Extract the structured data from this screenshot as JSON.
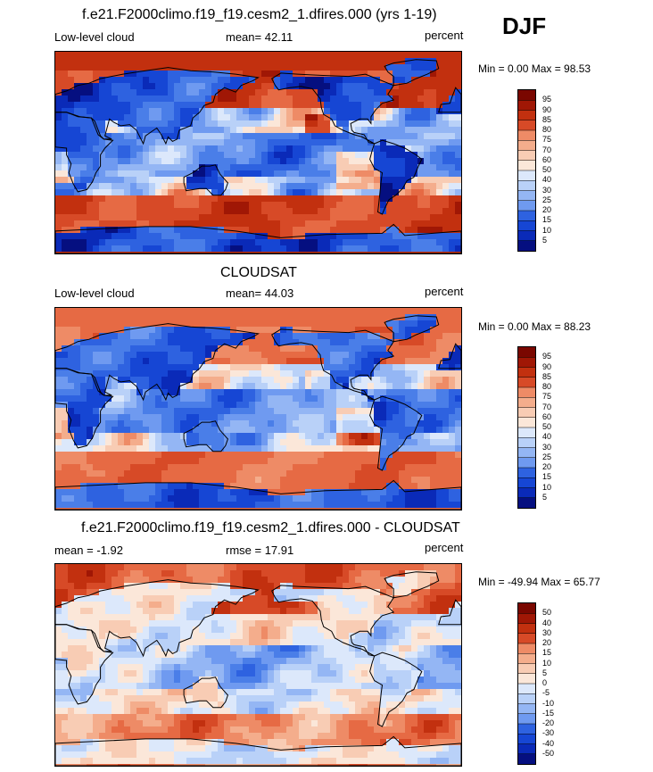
{
  "season": "DJF",
  "colors": {
    "levels11": [
      "#050f80",
      "#0a2ab8",
      "#1646d4",
      "#2e62e0",
      "#4a7ee8",
      "#6f9af0",
      "#94b6f4",
      "#b9d1f8",
      "#dce8fb",
      "#fbe7d9",
      "#f8ccb4",
      "#f4ad8c",
      "#ee8b66",
      "#e66a44",
      "#d74a27",
      "#c2300f",
      "#a01705",
      "#7a0700"
    ],
    "diff": [
      "#050f80",
      "#0a2ab8",
      "#1646d4",
      "#2e62e0",
      "#4a7ee8",
      "#6f9af0",
      "#94b6f4",
      "#b9d1f8",
      "#dce8fb",
      "#fbe7d9",
      "#f8ccb4",
      "#f4ad8c",
      "#ee8b66",
      "#e66a44",
      "#d74a27",
      "#c2300f",
      "#a01705",
      "#7a0700"
    ]
  },
  "panels": [
    {
      "title": "f.e21.F2000climo.f19_f19.cesm2_1.dfires.000 (yrs 1-19)",
      "left": "Low-level cloud",
      "center": "mean=  42.11",
      "right": "percent",
      "minmax": "Min =   0.00 Max =  98.53",
      "colorbar_labels": [
        "95",
        "90",
        "85",
        "80",
        "75",
        "70",
        "60",
        "50",
        "40",
        "30",
        "25",
        "20",
        "15",
        "10",
        "5"
      ]
    },
    {
      "title": "CLOUDSAT",
      "left": "Low-level cloud",
      "center": "mean=  44.03",
      "right": "percent",
      "minmax": "Min =   0.00 Max =  88.23",
      "colorbar_labels": [
        "95",
        "90",
        "85",
        "80",
        "75",
        "70",
        "60",
        "50",
        "40",
        "30",
        "25",
        "20",
        "15",
        "10",
        "5"
      ]
    },
    {
      "title": "f.e21.F2000climo.f19_f19.cesm2_1.dfires.000 - CLOUDSAT",
      "left": "mean =  -1.92",
      "center": "rmse =  17.91",
      "right": "percent",
      "minmax": "Min = -49.94 Max =  65.77",
      "colorbar_labels": [
        "50",
        "40",
        "30",
        "20",
        "15",
        "10",
        "5",
        "0",
        "-5",
        "-10",
        "-15",
        "-20",
        "-30",
        "-40",
        "-50"
      ]
    }
  ],
  "chart_data": [
    {
      "type": "heatmap",
      "title": "f.e21.F2000climo.f19_f19.cesm2_1.dfires.000 (yrs 1-19)",
      "variable": "Low-level cloud",
      "units": "percent",
      "mean": 42.11,
      "min": 0.0,
      "max": 98.53,
      "levels": [
        5,
        10,
        15,
        20,
        25,
        30,
        40,
        50,
        60,
        70,
        75,
        80,
        85,
        90,
        95
      ]
    },
    {
      "type": "heatmap",
      "title": "CLOUDSAT",
      "variable": "Low-level cloud",
      "units": "percent",
      "mean": 44.03,
      "min": 0.0,
      "max": 88.23,
      "levels": [
        5,
        10,
        15,
        20,
        25,
        30,
        40,
        50,
        60,
        70,
        75,
        80,
        85,
        90,
        95
      ]
    },
    {
      "type": "heatmap",
      "title": "f.e21.F2000climo.f19_f19.cesm2_1.dfires.000 - CLOUDSAT",
      "units": "percent",
      "mean": -1.92,
      "rmse": 17.91,
      "min": -49.94,
      "max": 65.77,
      "levels": [
        -50,
        -40,
        -30,
        -20,
        -15,
        -10,
        -5,
        0,
        5,
        10,
        15,
        20,
        30,
        40,
        50
      ]
    }
  ]
}
